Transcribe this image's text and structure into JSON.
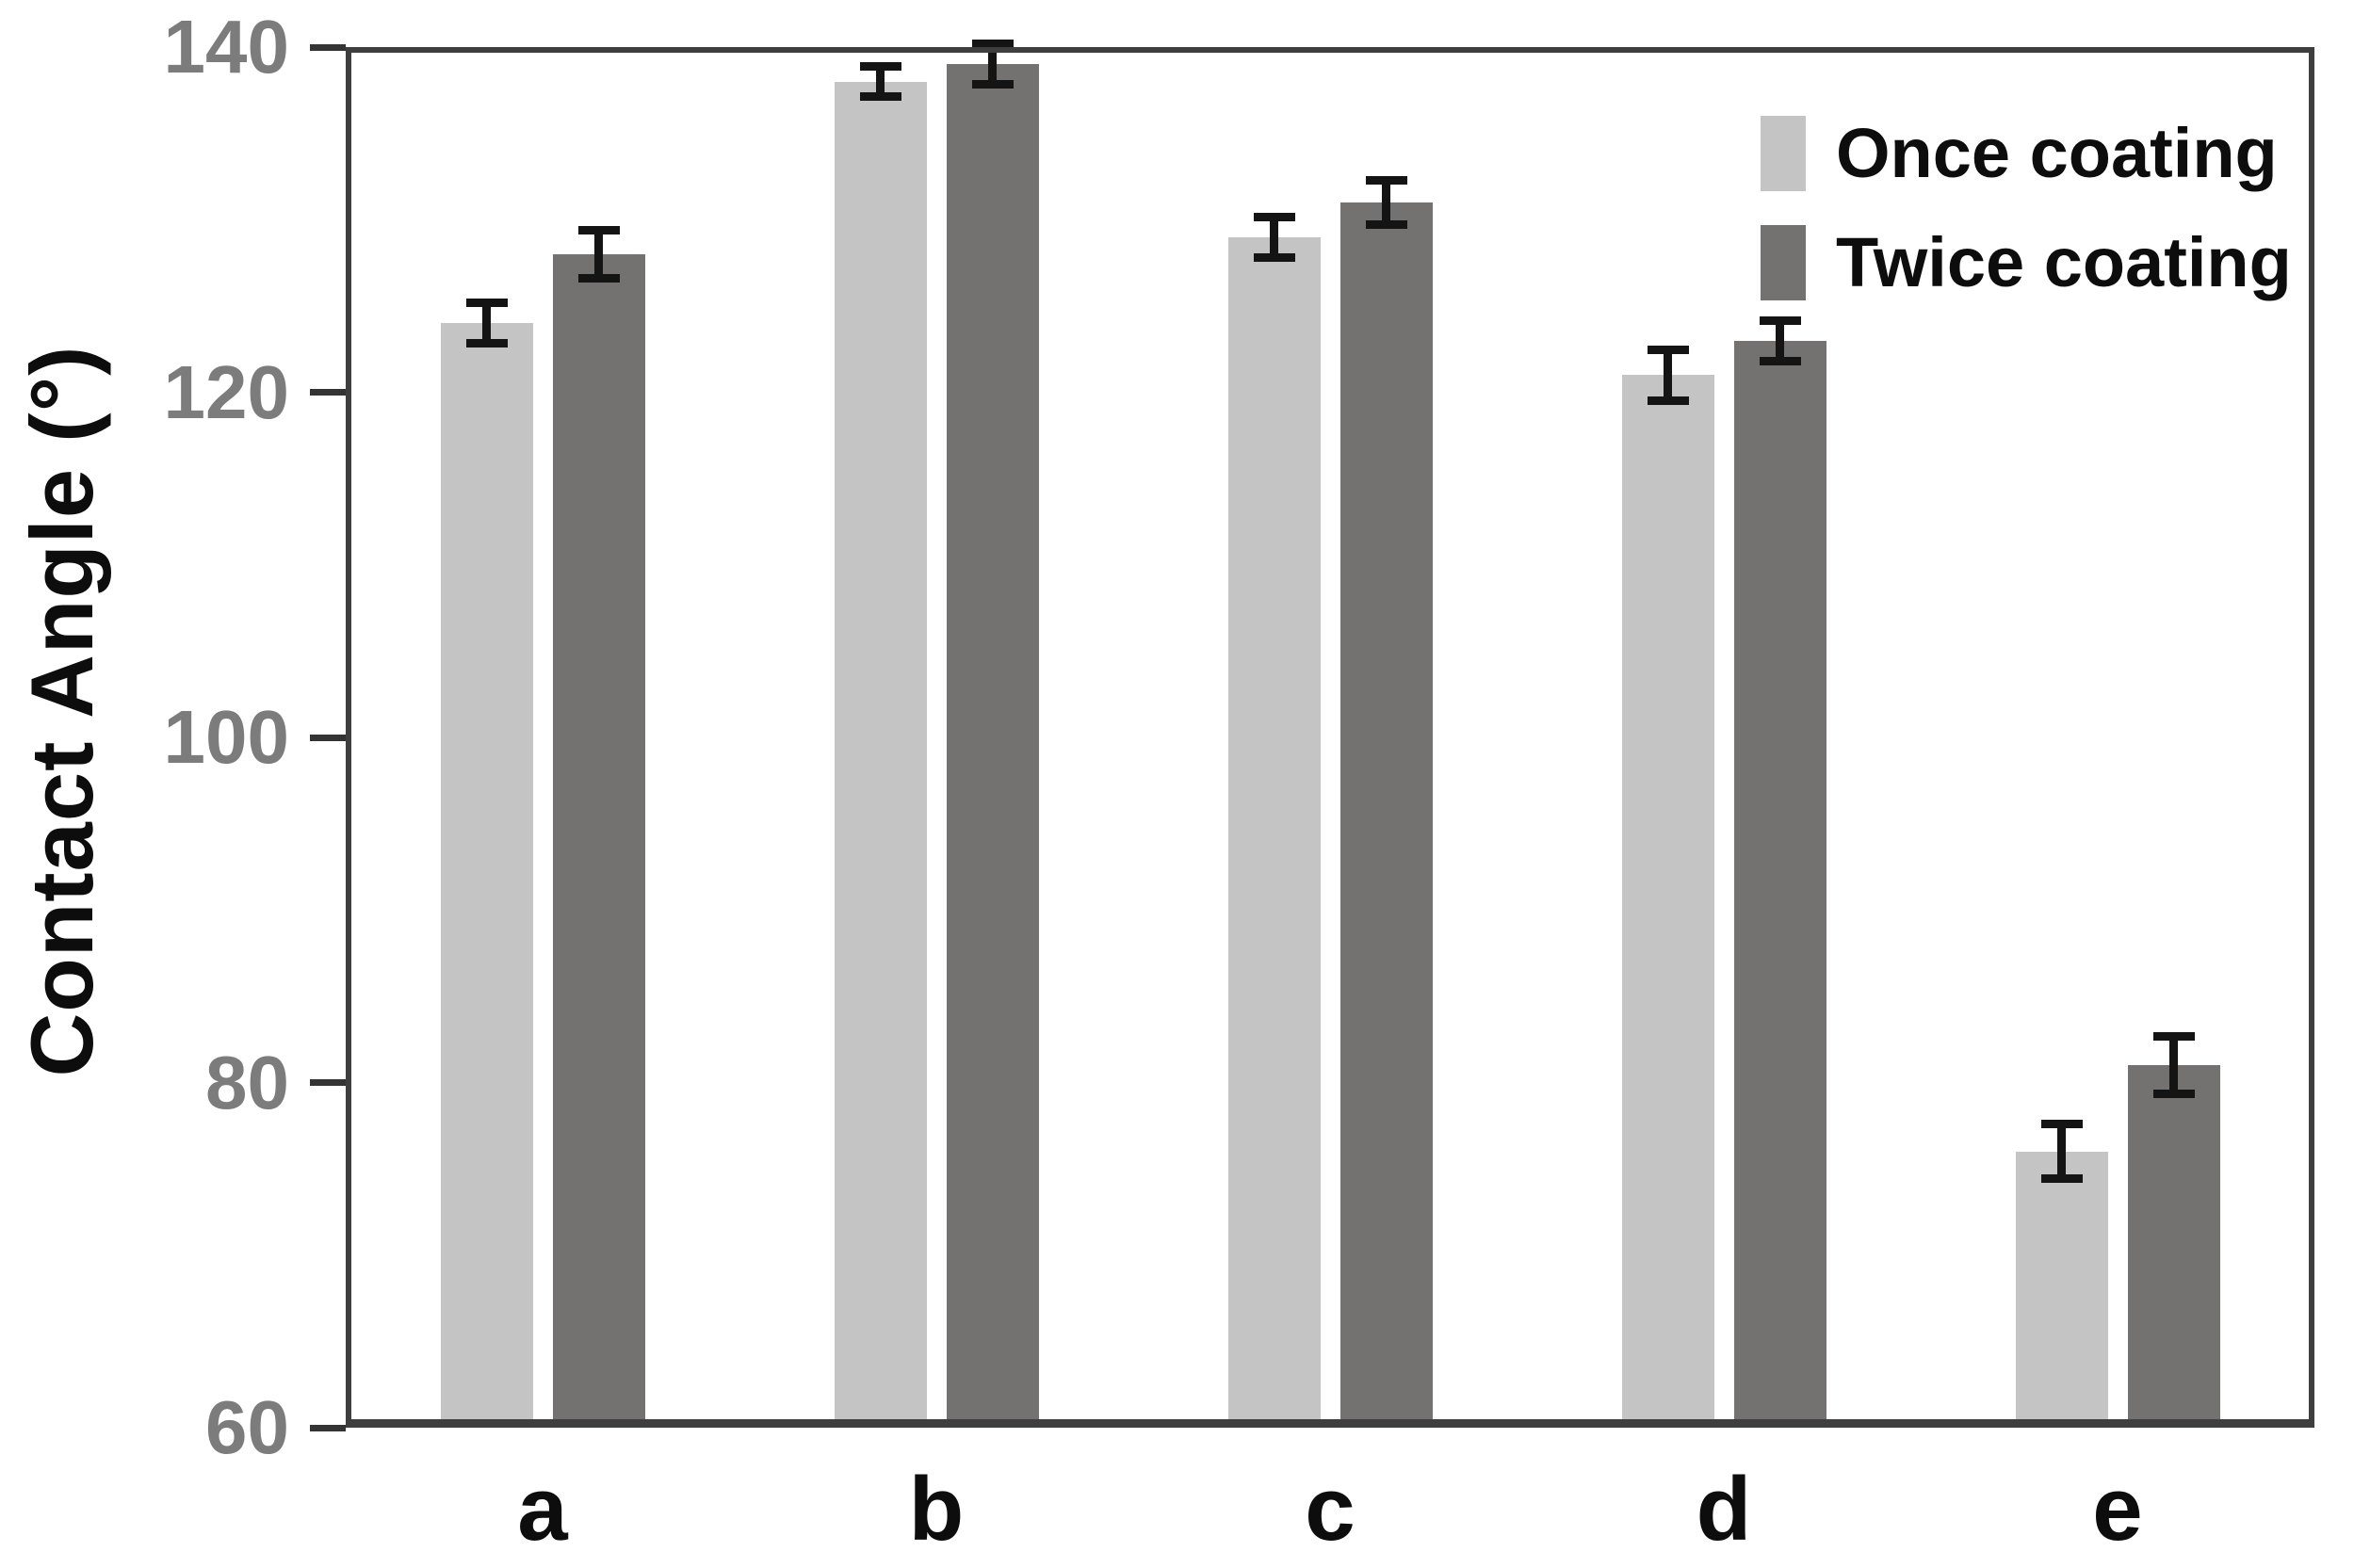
{
  "figure": {
    "background": "#ffffff"
  },
  "chart_data": {
    "type": "bar",
    "title": "",
    "xlabel": "",
    "ylabel": "Contact Angle (°)",
    "categories": [
      "a",
      "b",
      "c",
      "d",
      "e"
    ],
    "series": [
      {
        "name": "Once coating",
        "color": "#c4c4c4",
        "values": [
          124,
          138,
          129,
          121,
          76
        ],
        "errors": [
          1.2,
          0.9,
          1.2,
          1.5,
          1.6
        ]
      },
      {
        "name": "Twice coating",
        "color": "#737270",
        "values": [
          128,
          139,
          131,
          123,
          81
        ],
        "errors": [
          1.4,
          1.2,
          1.3,
          1.2,
          1.7
        ]
      }
    ],
    "ylim": [
      60,
      140
    ],
    "yticks": [
      140,
      120,
      100,
      80,
      60
    ],
    "grid": false,
    "error_bars": true,
    "legend_position": "top-right",
    "colors": {
      "axis_frame": "#3e3e3e",
      "tick_label": "#7c7c7c",
      "error_bar": "#141414",
      "text": "#0d0d0d"
    }
  }
}
